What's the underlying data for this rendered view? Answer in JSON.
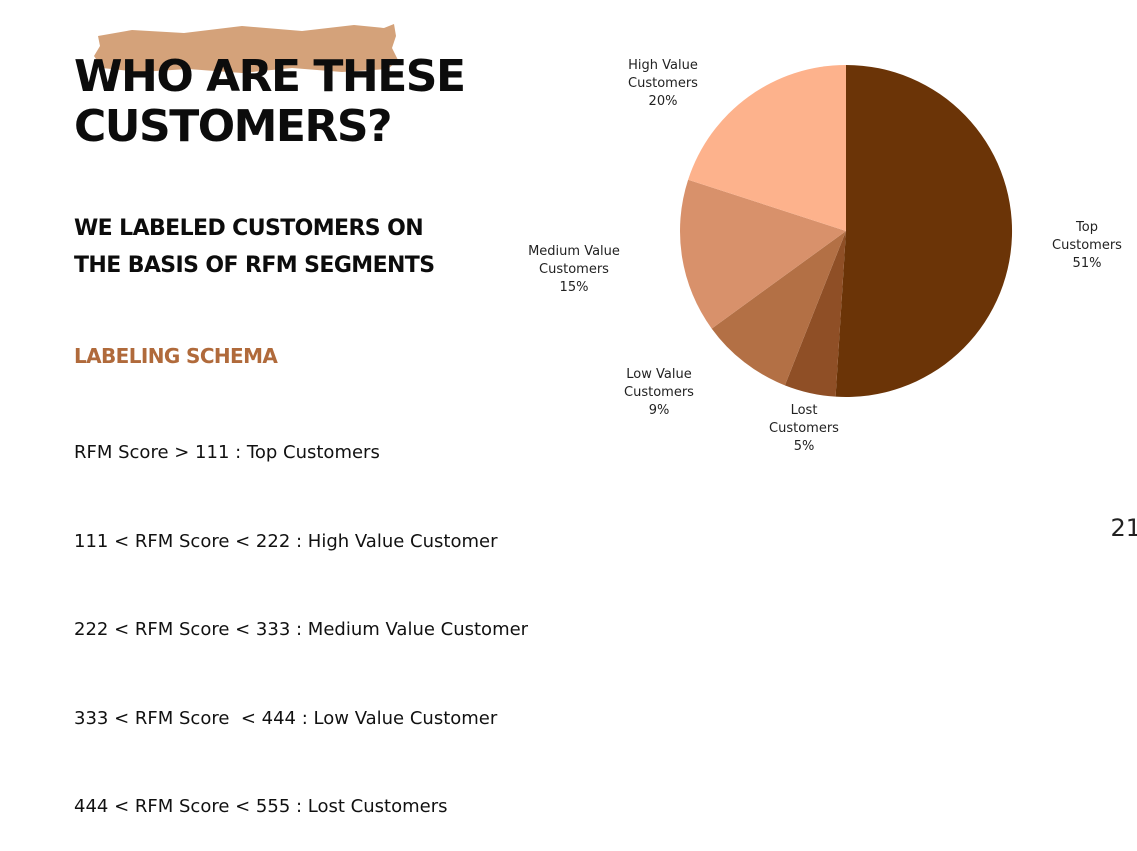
{
  "slide": {
    "title_lines": [
      "WHO ARE THESE",
      "CUSTOMERS?"
    ],
    "subtitle_lines": [
      "WE LABELED CUSTOMERS ON",
      "THE BASIS OF RFM SEGMENTS"
    ],
    "schema_title": "LABELING SCHEMA",
    "schema_items": [
      "RFM Score > 111 : Top Customers",
      "111 < RFM Score < 222 : High Value Customer",
      "222 < RFM Score < 333 : Medium Value Customer",
      "333 < RFM Score  < 444 : Low Value Customer",
      "444 < RFM Score < 555 : Lost Customers"
    ],
    "page_number": "21"
  },
  "colors": {
    "brush": "#d4a27a",
    "schema_title": "#b06a3b"
  },
  "chart_data": {
    "type": "pie",
    "slices": [
      {
        "label_lines": [
          "Top",
          "Customers"
        ],
        "pct_label": "51%",
        "value": 51,
        "color": "#6b3407"
      },
      {
        "label_lines": [
          "Lost",
          "Customers"
        ],
        "pct_label": "5%",
        "value": 5,
        "color": "#8f4f26"
      },
      {
        "label_lines": [
          "Low Value",
          "Customers"
        ],
        "pct_label": "9%",
        "value": 9,
        "color": "#b37045"
      },
      {
        "label_lines": [
          "Medium Value",
          "Customers"
        ],
        "pct_label": "15%",
        "value": 15,
        "color": "#d8916b"
      },
      {
        "label_lines": [
          "High Value",
          "Customers"
        ],
        "pct_label": "20%",
        "value": 20,
        "color": "#fdb28c"
      }
    ]
  }
}
